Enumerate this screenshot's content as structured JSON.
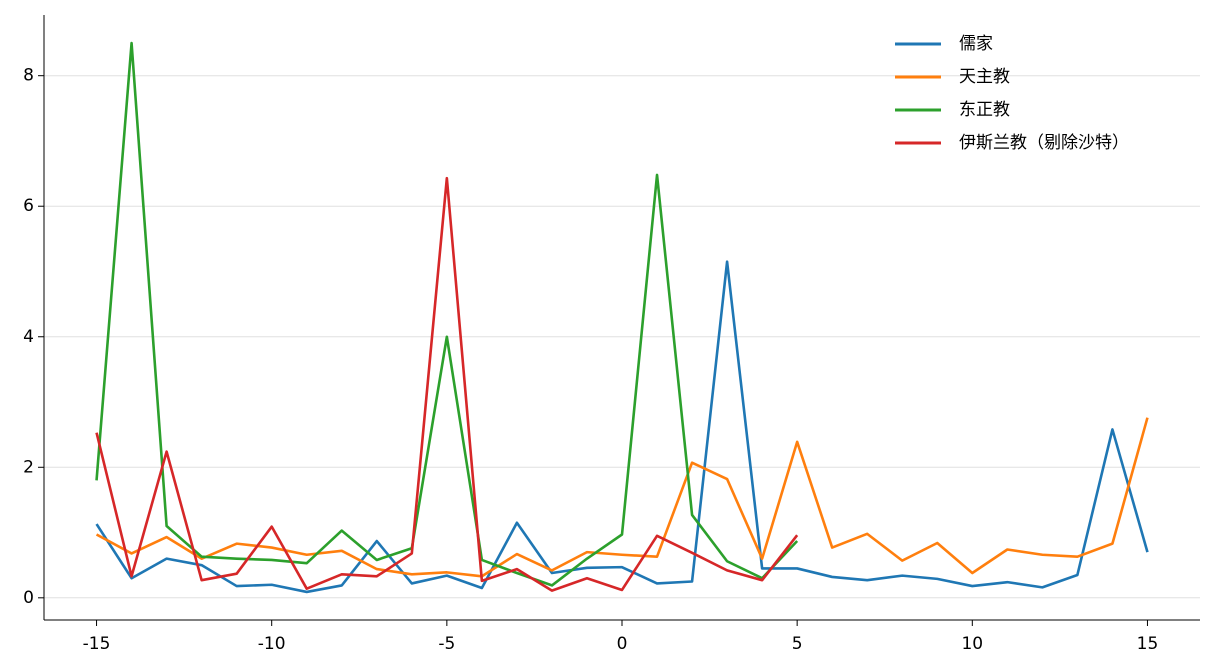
{
  "chart_data": {
    "type": "line",
    "x": [
      -15,
      -14,
      -13,
      -12,
      -11,
      -10,
      -9,
      -8,
      -7,
      -6,
      -5,
      -4,
      -3,
      -2,
      -1,
      0,
      1,
      2,
      3,
      4,
      5,
      6,
      7,
      8,
      9,
      10,
      11,
      12,
      13,
      14,
      15
    ],
    "series": [
      {
        "name": "儒家",
        "color": "#1f77b4",
        "values": [
          1.13,
          0.3,
          0.6,
          0.5,
          0.18,
          0.2,
          0.09,
          0.19,
          0.87,
          0.22,
          0.34,
          0.15,
          1.15,
          0.38,
          0.46,
          0.47,
          0.22,
          0.25,
          5.15,
          0.45,
          0.45,
          0.32,
          0.27,
          0.34,
          0.29,
          0.18,
          0.24,
          0.16,
          0.35,
          2.58,
          0.7
        ]
      },
      {
        "name": "天主教",
        "color": "#ff7f0e",
        "values": [
          0.97,
          0.68,
          0.93,
          0.6,
          0.83,
          0.77,
          0.66,
          0.72,
          0.44,
          0.36,
          0.39,
          0.33,
          0.67,
          0.42,
          0.7,
          0.66,
          0.63,
          2.07,
          1.82,
          0.6,
          2.39,
          0.77,
          0.98,
          0.57,
          0.84,
          0.38,
          0.74,
          0.66,
          0.63,
          0.83,
          2.76
        ]
      },
      {
        "name": "东正教",
        "color": "#2ca02c",
        "values": [
          1.8,
          8.5,
          1.1,
          0.63,
          0.6,
          0.58,
          0.53,
          1.03,
          0.58,
          0.76,
          4.0,
          0.58,
          0.38,
          0.19,
          0.6,
          0.97,
          6.48,
          1.27,
          0.56,
          0.3,
          0.87,
          null,
          null,
          null,
          null,
          null,
          null,
          null,
          null,
          null,
          null
        ]
      },
      {
        "name": "伊斯兰教（剔除沙特）",
        "color": "#d62728",
        "values": [
          2.53,
          0.33,
          2.24,
          0.27,
          0.37,
          1.09,
          0.14,
          0.36,
          0.33,
          0.68,
          6.43,
          0.26,
          0.44,
          0.11,
          0.3,
          0.12,
          0.95,
          0.69,
          0.42,
          0.27,
          0.96,
          null,
          null,
          null,
          null,
          null,
          null,
          null,
          null,
          null,
          null
        ]
      }
    ],
    "xlim": [
      -16.5,
      16.5
    ],
    "xticks": [
      -15,
      -10,
      -5,
      0,
      5,
      10,
      15
    ],
    "ylim": [
      -0.34,
      8.93
    ],
    "yticks": [
      0,
      2,
      4,
      6,
      8
    ],
    "grid": true,
    "legend": "upper right"
  }
}
